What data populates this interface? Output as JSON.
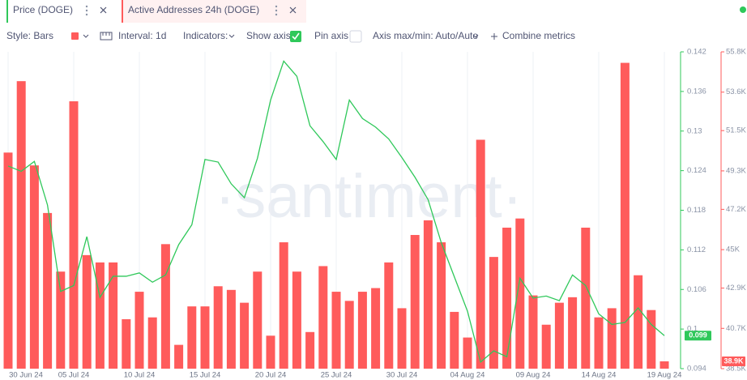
{
  "tabs": {
    "menu_hint": null
  },
  "toolbar": {
    "style": "Style: Bars",
    "interval": "Interval: 1d",
    "indicators": "Indicators:",
    "show_axis": "Show axis",
    "pin_axis": "Pin axis",
    "axis_minmax": "Axis max/min: Auto/Auto",
    "combine": "Combine metrics"
  },
  "watermark": "·santiment·",
  "chart_data": {
    "type": "bar",
    "categories": [
      "30 Jun 24",
      null,
      null,
      null,
      null,
      "05 Jul 24",
      null,
      null,
      null,
      null,
      "10 Jul 24",
      null,
      null,
      null,
      null,
      "15 Jul 24",
      null,
      null,
      null,
      null,
      "20 Jul 24",
      null,
      null,
      null,
      null,
      "25 Jul 24",
      null,
      null,
      null,
      null,
      "30 Jul 24",
      null,
      null,
      null,
      null,
      "04 Aug 24",
      null,
      null,
      null,
      null,
      "09 Aug 24",
      null,
      null,
      null,
      null,
      "14 Aug 24",
      null,
      null,
      null,
      null,
      "19 Aug 24"
    ],
    "series": [
      {
        "name": "Price (DOGE)",
        "type": "line",
        "axis": "y2",
        "color": "#2fc85a",
        "values": [
          0.1247,
          0.1239,
          0.1254,
          0.1188,
          0.1057,
          0.1066,
          0.114,
          0.1048,
          0.108,
          0.108,
          0.1085,
          0.1071,
          0.1082,
          0.1128,
          0.1158,
          0.1257,
          0.1253,
          0.122,
          0.1199,
          0.1259,
          0.1347,
          0.1406,
          0.1383,
          0.1308,
          0.1284,
          0.1257,
          0.1347,
          0.1319,
          0.1306,
          0.1288,
          0.126,
          0.123,
          0.1196,
          0.1131,
          0.1079,
          0.1027,
          0.095,
          0.0967,
          0.0958,
          0.1077,
          0.1047,
          0.105,
          0.1043,
          0.1082,
          0.1066,
          0.1023,
          0.1007,
          0.101,
          0.1032,
          0.1007,
          0.099
        ],
        "value_labels": [
          null,
          null,
          null,
          null,
          null,
          null,
          null,
          null,
          null,
          null,
          null,
          null,
          null,
          null,
          null,
          null,
          null,
          null,
          null,
          null,
          null,
          null,
          null,
          null,
          null,
          null,
          null,
          null,
          null,
          null,
          null,
          null,
          null,
          null,
          null,
          null,
          null,
          null,
          null,
          null,
          null,
          null,
          null,
          null,
          null,
          null,
          null,
          null,
          null,
          null,
          "0.099"
        ]
      },
      {
        "name": "Active Addresses 24h (DOGE)",
        "type": "bar",
        "axis": "y",
        "color": "#ff5b5b",
        "values": [
          50300,
          54200,
          49600,
          47000,
          43800,
          53100,
          44700,
          44300,
          44300,
          41200,
          42700,
          41300,
          45300,
          39800,
          41900,
          41900,
          43000,
          42800,
          42100,
          43800,
          40300,
          45400,
          43800,
          40500,
          44100,
          42700,
          42200,
          42700,
          42900,
          44300,
          41800,
          45800,
          46600,
          45400,
          41600,
          40200,
          51000,
          44600,
          46200,
          46700,
          42500,
          40900,
          42100,
          42400,
          46200,
          41300,
          41800,
          55200,
          43600,
          41700,
          38900
        ],
        "value_labels": [
          null,
          null,
          null,
          null,
          null,
          null,
          null,
          null,
          null,
          null,
          null,
          null,
          null,
          null,
          null,
          null,
          null,
          null,
          null,
          null,
          null,
          null,
          null,
          null,
          null,
          null,
          null,
          null,
          null,
          null,
          null,
          null,
          null,
          null,
          null,
          null,
          null,
          null,
          null,
          null,
          null,
          null,
          null,
          null,
          null,
          null,
          null,
          null,
          null,
          null,
          "38.9K"
        ]
      }
    ],
    "ylim": [
      38500,
      55800
    ],
    "yticks": [
      {
        "value": 38500,
        "label": "38.5K"
      },
      {
        "value": 40700,
        "label": "40.7K"
      },
      {
        "value": 42900,
        "label": "42.9K"
      },
      {
        "value": 45000,
        "label": "45K"
      },
      {
        "value": 47200,
        "label": "47.2K"
      },
      {
        "value": 49300,
        "label": "49.3K"
      },
      {
        "value": 51500,
        "label": "51.5K"
      },
      {
        "value": 53600,
        "label": "53.6K"
      },
      {
        "value": 55800,
        "label": "55.8K"
      }
    ],
    "y2lim": [
      0.094,
      0.142
    ],
    "y2ticks": [
      0.094,
      0.1,
      0.106,
      0.112,
      0.118,
      0.124,
      0.13,
      0.136,
      0.142
    ],
    "grid": true
  }
}
